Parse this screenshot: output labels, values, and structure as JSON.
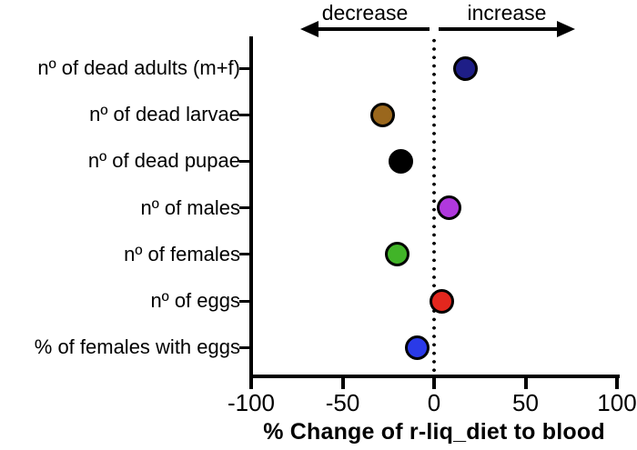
{
  "figure_title": "",
  "chart_data": {
    "type": "scatter",
    "orientation": "horizontal-dot-plot",
    "categories": [
      "nº of dead adults (m+f)",
      "nº of dead larvae",
      "nº of dead pupae",
      "nº of males",
      "nº of females",
      "nº of eggs",
      "% of females with eggs"
    ],
    "values": [
      17,
      -28,
      -18,
      8,
      -20,
      4,
      -9
    ],
    "colors": [
      "#1e1e87",
      "#9a671d",
      "#000000",
      "#b038dd",
      "#41b428",
      "#e3271e",
      "#2a3ae8"
    ],
    "marker_outline": "#000000",
    "xlabel": "% Change of r-liq_diet to blood",
    "xlim": [
      -100,
      100
    ],
    "x_ticks": [
      -100,
      -50,
      0,
      50,
      100
    ],
    "x_tick_labels": [
      "-100",
      "-50",
      "0",
      "50",
      "100"
    ],
    "zero_line_style": "dotted",
    "grid": false,
    "legend": "none",
    "annotations": {
      "left_label": "decrease",
      "right_label": "increase"
    }
  }
}
